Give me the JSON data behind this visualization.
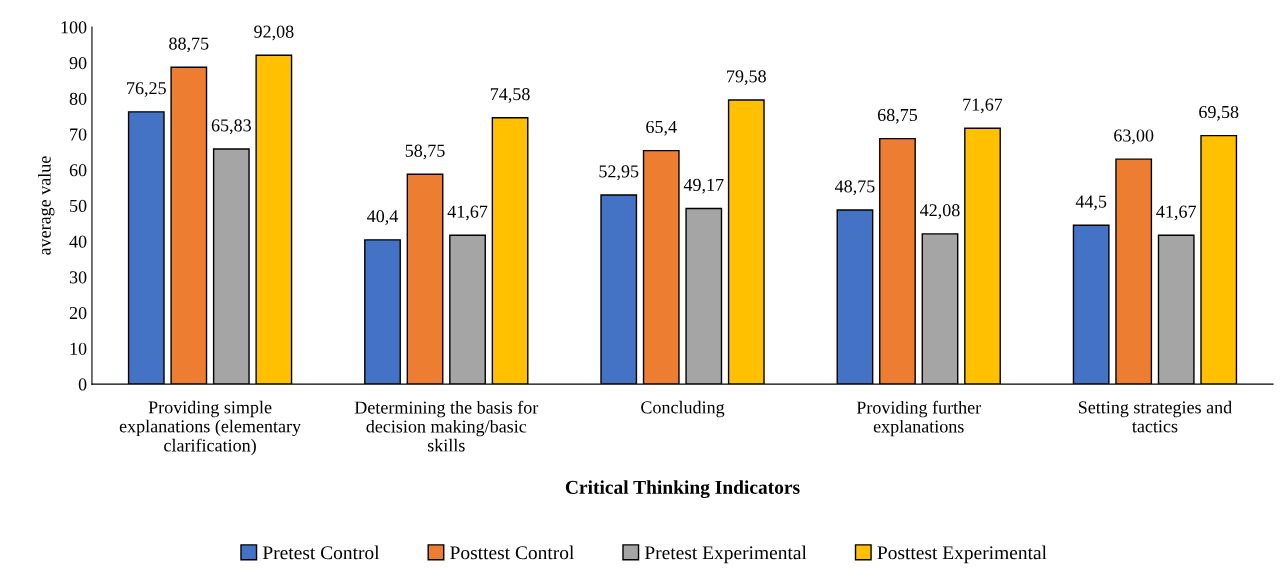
{
  "chart_data": {
    "type": "bar",
    "xlabel": "Critical Thinking Indicators",
    "ylabel": "average value",
    "categories": [
      "Providing simple\nexplanations (elementary\nclarification)",
      "Determining the basis for\ndecision making/basic\nskills",
      "Concluding",
      "Providing further\nexplanations",
      "Setting strategies and\ntactics"
    ],
    "series": [
      {
        "name": "Pretest Control",
        "color": "#4472c4",
        "values": [
          76.25,
          40.4,
          52.95,
          48.75,
          44.5
        ],
        "value_labels": [
          "76,25",
          "40,4",
          "52,95",
          "48,75",
          "44,5"
        ]
      },
      {
        "name": "Posttest Control",
        "color": "#ed7d31",
        "values": [
          88.75,
          58.75,
          65.4,
          68.75,
          63.0
        ],
        "value_labels": [
          "88,75",
          "58,75",
          "65,4",
          "68,75",
          "63,00"
        ]
      },
      {
        "name": "Pretest Experimental",
        "color": "#a5a5a5",
        "values": [
          65.83,
          41.67,
          49.17,
          42.08,
          41.67
        ],
        "value_labels": [
          "65,83",
          "41,67",
          "49,17",
          "42,08",
          "41,67"
        ]
      },
      {
        "name": "Posttest Experimental",
        "color": "#ffc000",
        "values": [
          92.08,
          74.58,
          79.58,
          71.67,
          69.58
        ],
        "value_labels": [
          "92,08",
          "74,58",
          "79,58",
          "71,67",
          "69,58"
        ]
      }
    ],
    "ylim": [
      0,
      100
    ],
    "yticks": [
      0,
      10,
      20,
      30,
      40,
      50,
      60,
      70,
      80,
      90,
      100
    ],
    "grid": false,
    "legend": "bottom"
  }
}
